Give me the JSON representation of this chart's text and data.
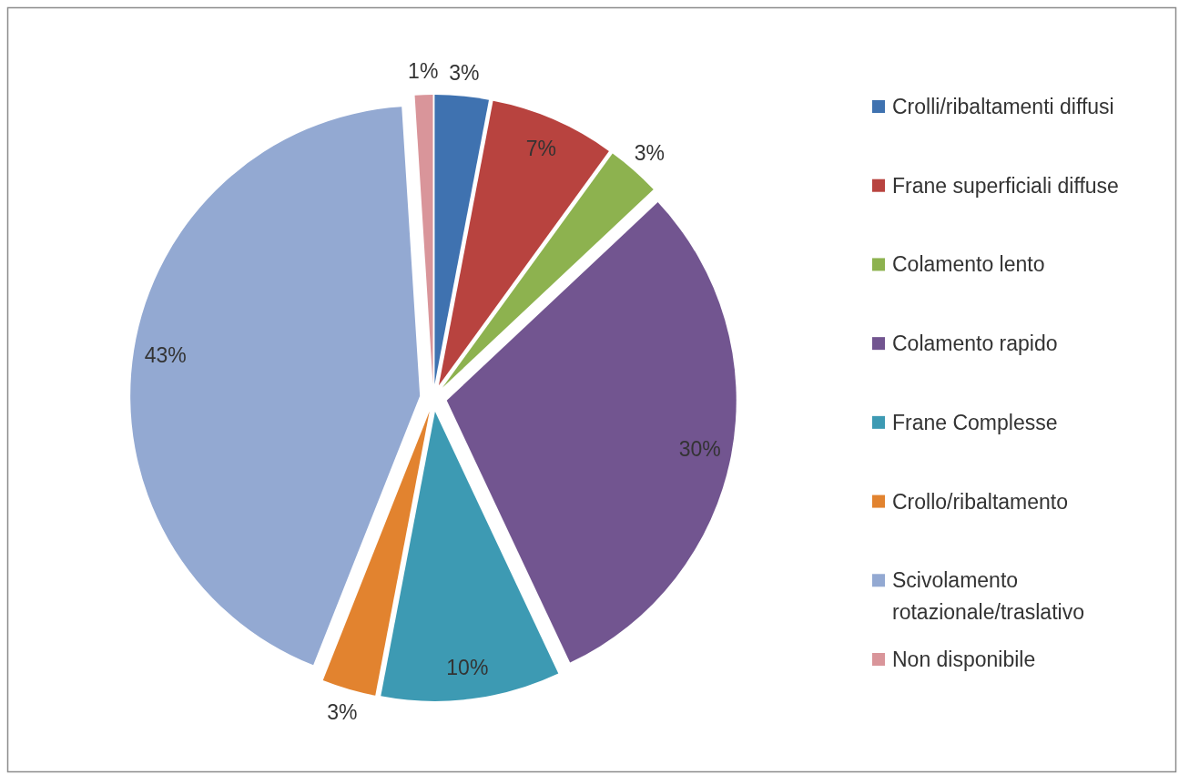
{
  "chart_data": {
    "type": "pie",
    "categories": [
      "Crolli/ribaltamenti diffusi",
      "Frane superficiali diffuse",
      "Colamento lento",
      "Colamento rapido",
      "Frane Complesse",
      "Crollo/ribaltamento",
      "Scivolamento rotazionale/traslativo",
      "Non disponibile"
    ],
    "values": [
      3,
      7,
      3,
      30,
      10,
      3,
      43,
      1
    ],
    "colors": [
      "#3f72b0",
      "#b8433f",
      "#8db24f",
      "#725590",
      "#3d9ab3",
      "#e2832f",
      "#93a9d2",
      "#d9959a"
    ],
    "value_labels": [
      "3%",
      "7%",
      "3%",
      "30%",
      "10%",
      "3%",
      "43%",
      "1%"
    ],
    "legend": "right"
  }
}
